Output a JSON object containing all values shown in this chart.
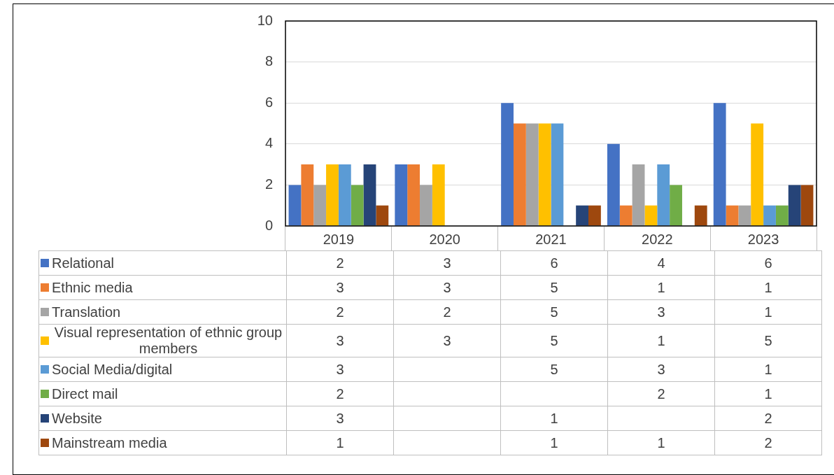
{
  "chart_data": {
    "type": "bar",
    "categories": [
      "2019",
      "2020",
      "2021",
      "2022",
      "2023"
    ],
    "series": [
      {
        "name": "Relational",
        "color": "#4472c4",
        "values": [
          2,
          3,
          6,
          4,
          6
        ]
      },
      {
        "name": "Ethnic media",
        "color": "#ed7d31",
        "values": [
          3,
          3,
          5,
          1,
          1
        ]
      },
      {
        "name": "Translation",
        "color": "#a5a5a5",
        "values": [
          2,
          2,
          5,
          3,
          1
        ]
      },
      {
        "name": "Visual representation of ethnic group members",
        "color": "#ffc000",
        "values": [
          3,
          3,
          5,
          1,
          5
        ]
      },
      {
        "name": "Social Media/digital",
        "color": "#5b9bd5",
        "values": [
          3,
          null,
          5,
          3,
          1
        ]
      },
      {
        "name": "Direct mail",
        "color": "#70ad47",
        "values": [
          2,
          null,
          null,
          2,
          1
        ]
      },
      {
        "name": "Website",
        "color": "#264478",
        "values": [
          3,
          null,
          1,
          null,
          2
        ]
      },
      {
        "name": "Mainstream media",
        "color": "#9e480e",
        "values": [
          1,
          null,
          1,
          1,
          2
        ]
      }
    ],
    "ylim": [
      0,
      10
    ],
    "yticks": [
      0,
      2,
      4,
      6,
      8,
      10
    ],
    "grid": "y",
    "legend": "bottom",
    "data_labels": true
  }
}
